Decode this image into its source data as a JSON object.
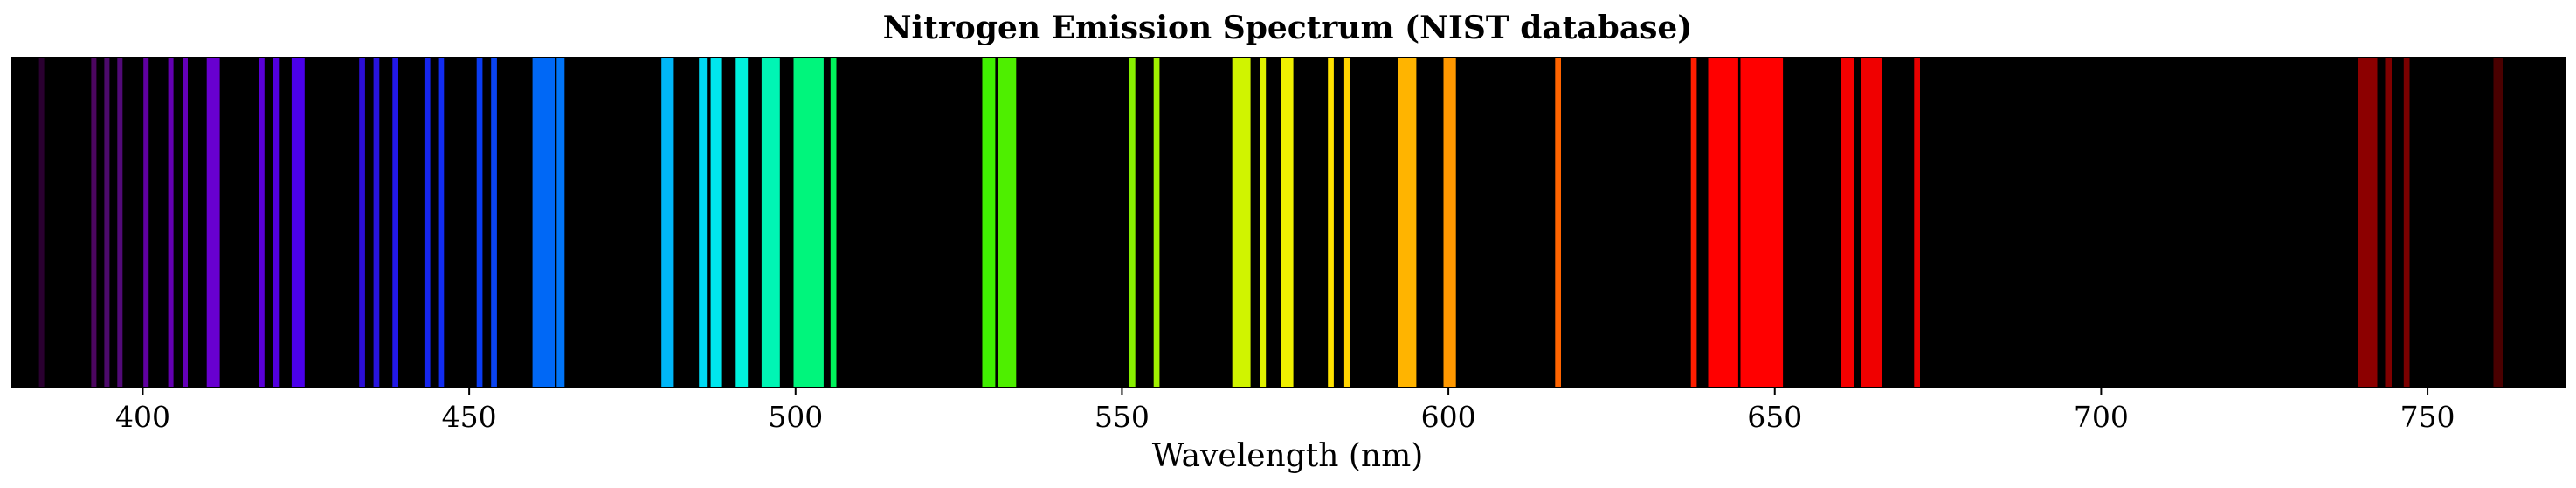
{
  "chart_data": {
    "type": "bar",
    "title": "Nitrogen Emission Spectrum (NIST database)",
    "xlabel": "Wavelength (nm)",
    "ylabel": "",
    "xlim": [
      380,
      771
    ],
    "x_ticks": [
      400,
      450,
      500,
      550,
      600,
      650,
      700,
      750
    ],
    "y_ticks": [],
    "background": "#000000",
    "grid": false,
    "legend": "none",
    "lines": [
      {
        "nm": 384.5,
        "width_nm": 0.8,
        "color": "#2a0030"
      },
      {
        "nm": 392.5,
        "width_nm": 0.8,
        "color": "#4c0660"
      },
      {
        "nm": 394.5,
        "width_nm": 0.8,
        "color": "#4d0a6b"
      },
      {
        "nm": 396.5,
        "width_nm": 0.8,
        "color": "#520a78"
      },
      {
        "nm": 400.5,
        "width_nm": 0.8,
        "color": "#6000a0"
      },
      {
        "nm": 404.3,
        "width_nm": 0.8,
        "color": "#6300b0"
      },
      {
        "nm": 406.5,
        "width_nm": 0.8,
        "color": "#6400b8"
      },
      {
        "nm": 410.8,
        "width_nm": 2.0,
        "color": "#6800d0"
      },
      {
        "nm": 418.2,
        "width_nm": 0.9,
        "color": "#5a00d8"
      },
      {
        "nm": 420.4,
        "width_nm": 0.9,
        "color": "#5300e0"
      },
      {
        "nm": 423.8,
        "width_nm": 2.0,
        "color": "#4b00ea"
      },
      {
        "nm": 433.6,
        "width_nm": 0.9,
        "color": "#2c0ed6"
      },
      {
        "nm": 435.8,
        "width_nm": 0.9,
        "color": "#2814de"
      },
      {
        "nm": 438.7,
        "width_nm": 0.9,
        "color": "#2218e6"
      },
      {
        "nm": 443.6,
        "width_nm": 0.9,
        "color": "#1626ee"
      },
      {
        "nm": 445.7,
        "width_nm": 0.9,
        "color": "#122cf0"
      },
      {
        "nm": 451.6,
        "width_nm": 0.9,
        "color": "#0a3cf2"
      },
      {
        "nm": 453.8,
        "width_nm": 0.9,
        "color": "#0a44f2"
      },
      {
        "nm": 461.4,
        "width_nm": 3.4,
        "color": "#0068f6"
      },
      {
        "nm": 464.0,
        "width_nm": 1.2,
        "color": "#0074f8"
      },
      {
        "nm": 480.4,
        "width_nm": 1.9,
        "color": "#00b6f8"
      },
      {
        "nm": 485.8,
        "width_nm": 1.2,
        "color": "#00daf4"
      },
      {
        "nm": 487.8,
        "width_nm": 1.6,
        "color": "#00e6ee"
      },
      {
        "nm": 491.7,
        "width_nm": 2.0,
        "color": "#00f2de"
      },
      {
        "nm": 496.2,
        "width_nm": 2.8,
        "color": "#00f5b4"
      },
      {
        "nm": 502.0,
        "width_nm": 4.6,
        "color": "#00f57c"
      },
      {
        "nm": 505.8,
        "width_nm": 0.9,
        "color": "#00f25a"
      },
      {
        "nm": 529.6,
        "width_nm": 2.0,
        "color": "#40ef00"
      },
      {
        "nm": 532.4,
        "width_nm": 2.8,
        "color": "#4eef00"
      },
      {
        "nm": 551.6,
        "width_nm": 0.9,
        "color": "#88f000"
      },
      {
        "nm": 555.3,
        "width_nm": 0.9,
        "color": "#a0f000"
      },
      {
        "nm": 568.3,
        "width_nm": 2.8,
        "color": "#d0f400"
      },
      {
        "nm": 571.6,
        "width_nm": 0.9,
        "color": "#e0f200"
      },
      {
        "nm": 575.3,
        "width_nm": 1.9,
        "color": "#f0f000"
      },
      {
        "nm": 582.0,
        "width_nm": 0.9,
        "color": "#ffe200"
      },
      {
        "nm": 584.5,
        "width_nm": 0.9,
        "color": "#ffd400"
      },
      {
        "nm": 593.7,
        "width_nm": 2.8,
        "color": "#ffb400"
      },
      {
        "nm": 600.2,
        "width_nm": 1.9,
        "color": "#ff9800"
      },
      {
        "nm": 616.8,
        "width_nm": 0.9,
        "color": "#ff6400"
      },
      {
        "nm": 637.6,
        "width_nm": 0.9,
        "color": "#ff1e00"
      },
      {
        "nm": 642.1,
        "width_nm": 4.6,
        "color": "#ff0000"
      },
      {
        "nm": 648.0,
        "width_nm": 6.5,
        "color": "#ff0000"
      },
      {
        "nm": 661.2,
        "width_nm": 2.0,
        "color": "#f40000"
      },
      {
        "nm": 664.8,
        "width_nm": 3.2,
        "color": "#f00000"
      },
      {
        "nm": 671.8,
        "width_nm": 0.9,
        "color": "#e60000"
      },
      {
        "nm": 740.8,
        "width_nm": 3.0,
        "color": "#8c0000"
      },
      {
        "nm": 744.0,
        "width_nm": 1.0,
        "color": "#800000"
      },
      {
        "nm": 746.8,
        "width_nm": 0.9,
        "color": "#7a0000"
      },
      {
        "nm": 760.8,
        "width_nm": 1.4,
        "color": "#4a0000"
      }
    ]
  }
}
